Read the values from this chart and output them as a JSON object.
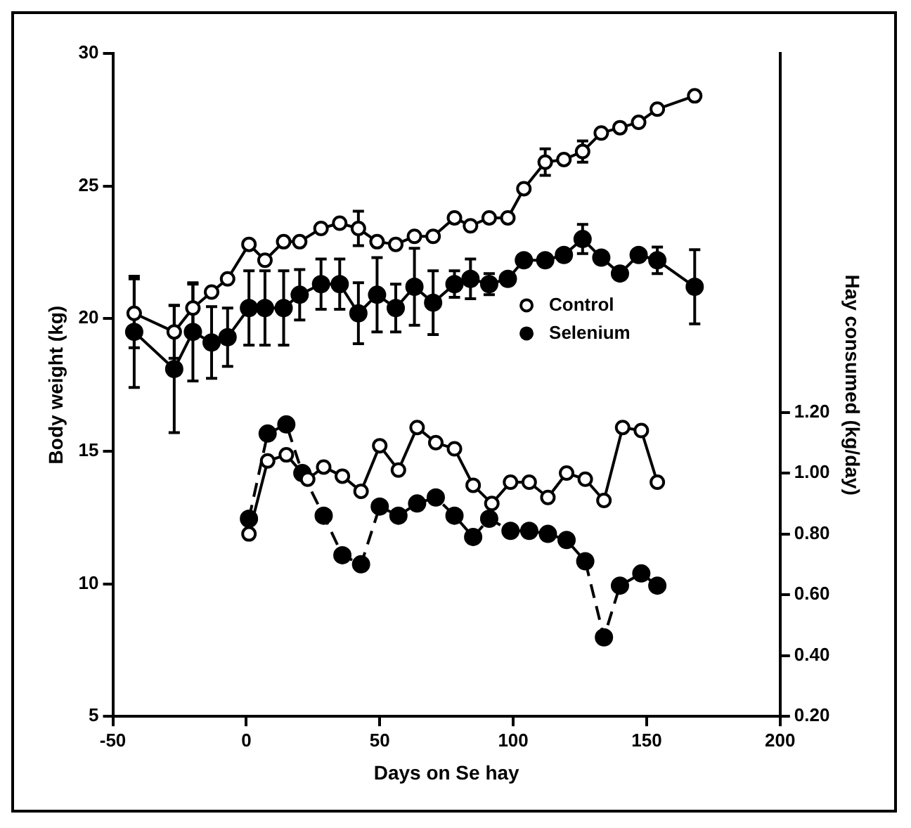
{
  "chart_data": {
    "type": "line",
    "xlabel": "Days on Se hay",
    "ylabel": "Body weight (kg)",
    "y2label": "Hay consumed (kg/day)",
    "xlim": [
      -50,
      200
    ],
    "xticks": [
      -50,
      0,
      50,
      100,
      150,
      200
    ],
    "ylim": [
      5,
      30
    ],
    "yticks": [
      5,
      10,
      15,
      20,
      25,
      30
    ],
    "y2lim": [
      0.2,
      2.38
    ],
    "y2ticks": [
      {
        "value": 0.2,
        "label": "0.20"
      },
      {
        "value": 0.4,
        "label": "0.40"
      },
      {
        "value": 0.6,
        "label": "0.60"
      },
      {
        "value": 0.8,
        "label": "0.80"
      },
      {
        "value": 1.0,
        "label": "1.00"
      },
      {
        "value": 1.2,
        "label": "1.20"
      }
    ],
    "grid": false,
    "legend": "right",
    "marker": "circle",
    "series": [
      {
        "name": "Control",
        "color": "#000000",
        "x": [
          -42,
          -27,
          -20,
          -13,
          -7,
          1,
          7,
          14,
          20,
          28,
          35,
          42,
          49,
          56,
          63,
          70,
          78,
          84,
          91,
          98,
          104,
          112,
          119,
          126,
          133,
          140,
          147,
          154,
          168
        ],
        "values": [
          20.2,
          19.5,
          20.4,
          21.0,
          21.5,
          22.8,
          22.2,
          22.9,
          22.9,
          23.4,
          23.6,
          23.4,
          22.9,
          22.8,
          23.1,
          23.1,
          23.8,
          23.5,
          23.8,
          23.8,
          24.9,
          25.9,
          26.0,
          26.3,
          27.0,
          27.2,
          27.4,
          27.9,
          28.4
        ],
        "errors": [
          1.3,
          1.0,
          0.9,
          null,
          null,
          null,
          null,
          null,
          null,
          null,
          null,
          0.65,
          null,
          null,
          null,
          null,
          null,
          null,
          null,
          null,
          null,
          0.5,
          null,
          0.4,
          null,
          null,
          null,
          null,
          null
        ]
      },
      {
        "name": "Selenium",
        "color": "#000000",
        "x": [
          -42,
          -27,
          -20,
          -13,
          -7,
          1,
          7,
          14,
          20,
          28,
          35,
          42,
          49,
          56,
          63,
          70,
          78,
          84,
          91,
          98,
          104,
          112,
          119,
          126,
          133,
          140,
          147,
          154,
          168
        ],
        "values": [
          19.5,
          18.1,
          19.5,
          19.1,
          19.3,
          20.4,
          20.4,
          20.4,
          20.9,
          21.3,
          21.3,
          20.2,
          20.9,
          20.4,
          21.2,
          20.6,
          21.3,
          21.5,
          21.3,
          21.5,
          22.2,
          22.2,
          22.4,
          23.0,
          22.3,
          21.7,
          22.4,
          22.2,
          21.2
        ],
        "errors": [
          2.1,
          2.4,
          1.85,
          1.35,
          1.1,
          1.4,
          1.4,
          1.4,
          0.95,
          0.95,
          0.95,
          1.15,
          1.4,
          0.9,
          1.45,
          1.2,
          0.5,
          0.75,
          0.4,
          null,
          null,
          null,
          null,
          0.55,
          null,
          null,
          null,
          0.5,
          1.4
        ]
      },
      {
        "color": "#000000",
        "axis": "y2",
        "x": [
          1,
          8,
          15,
          23,
          29,
          36,
          43,
          50,
          57,
          64,
          71,
          78,
          85,
          92,
          99,
          106,
          113,
          120,
          127,
          134,
          141,
          148,
          154
        ],
        "values": [
          0.8,
          1.04,
          1.06,
          0.98,
          1.02,
          0.99,
          0.94,
          1.09,
          1.01,
          1.15,
          1.1,
          1.08,
          0.96,
          0.9,
          0.97,
          0.97,
          0.92,
          1.0,
          0.98,
          0.91,
          1.15,
          1.14,
          0.97
        ]
      },
      {
        "color": "#000000",
        "axis": "y2",
        "line_style": "dashed",
        "x": [
          1,
          8,
          15,
          21,
          29,
          36,
          43,
          50,
          57,
          64,
          71,
          78,
          85,
          91,
          99,
          106,
          113,
          120,
          127,
          134,
          140,
          148,
          154
        ],
        "values": [
          0.85,
          1.13,
          1.16,
          1.0,
          0.86,
          0.73,
          0.7,
          0.89,
          0.86,
          0.9,
          0.92,
          0.86,
          0.79,
          0.85,
          0.81,
          0.81,
          0.8,
          0.78,
          0.71,
          0.46,
          0.63,
          0.67,
          0.63
        ]
      }
    ]
  }
}
